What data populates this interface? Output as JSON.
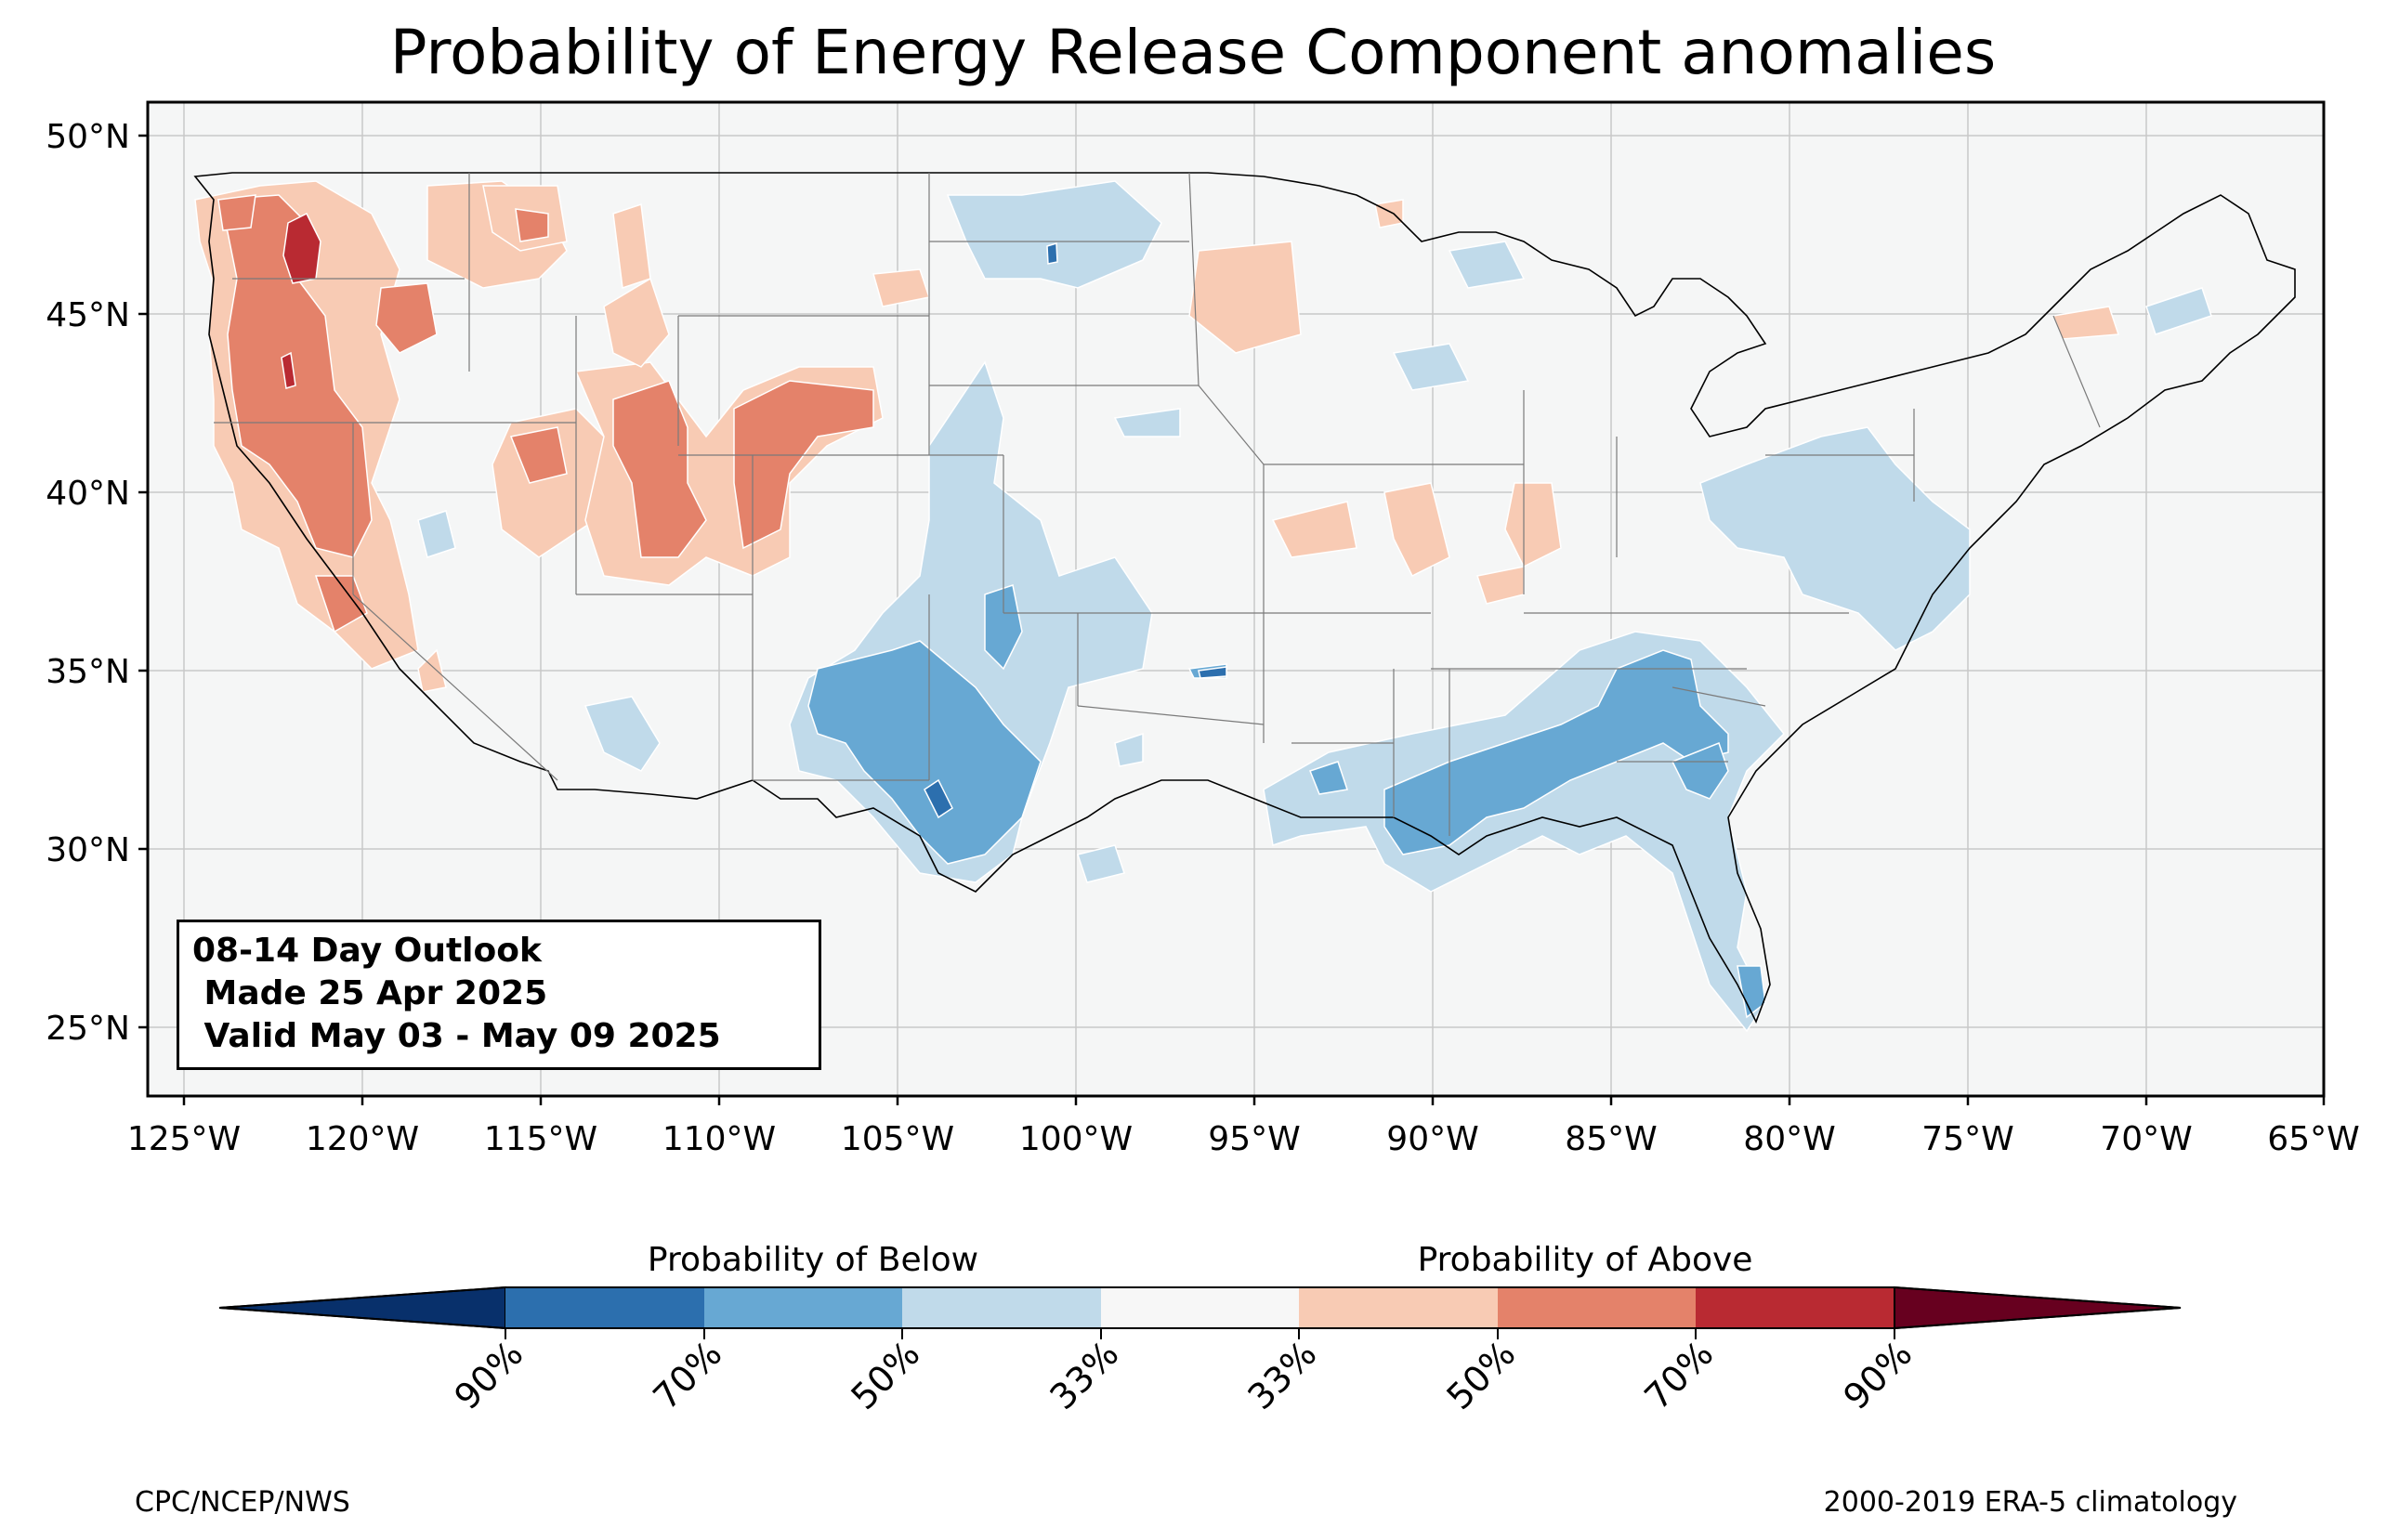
{
  "title": "Probability of Energy Release Component anomalies",
  "map": {
    "extent": {
      "lon_min": -126,
      "lon_max": -65,
      "lat_min": 23,
      "lat_max": 51
    },
    "lat_ticks": [
      "50°N",
      "45°N",
      "40°N",
      "35°N",
      "30°N",
      "25°N"
    ],
    "lon_ticks": [
      "125°W",
      "120°W",
      "115°W",
      "110°W",
      "105°W",
      "100°W",
      "95°W",
      "90°W",
      "85°W",
      "80°W",
      "75°W",
      "70°W",
      "65°W"
    ],
    "background_color": "#f5f6f6",
    "grid": true
  },
  "info_box": {
    "line1": "08-14 Day Outlook",
    "line2": " Made 25 Apr 2025",
    "line3": " Valid May 03 - May 09 2025"
  },
  "colorbar": {
    "below_label": "Probability of Below",
    "above_label": "Probability of Above",
    "tick_labels": [
      "90%",
      "70%",
      "50%",
      "33%",
      "33%",
      "50%",
      "70%",
      "90%"
    ],
    "colors": [
      "#08306b",
      "#2c6fae",
      "#67a8d3",
      "#c0daea",
      "#f7f7f7",
      "#f8cbb4",
      "#e4826a",
      "#b92a32",
      "#67001f"
    ]
  },
  "credits": {
    "left": "CPC/NCEP/NWS",
    "right": "2000-2019 ERA-5 climatology"
  }
}
